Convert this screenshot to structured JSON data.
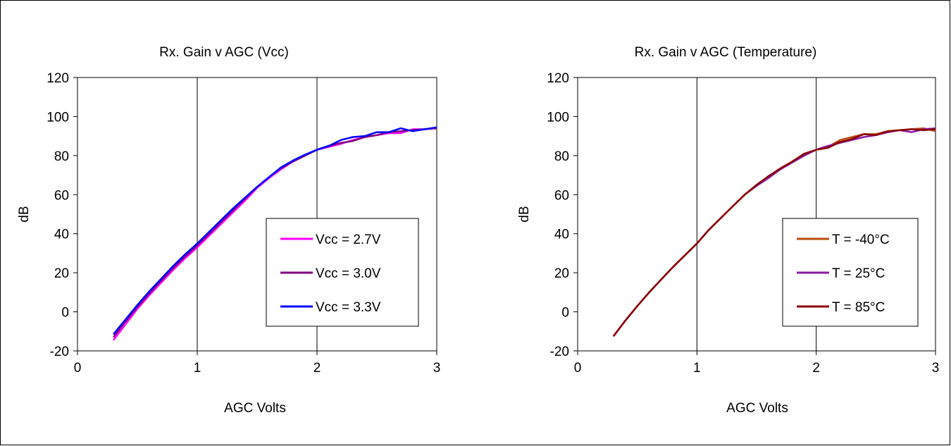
{
  "chart_data": [
    {
      "type": "line",
      "title": "Rx. Gain v AGC (Vcc)",
      "xlabel": "AGC Volts",
      "ylabel": "dB",
      "xlim": [
        0,
        3
      ],
      "ylim": [
        -20,
        120
      ],
      "xticks": [
        "0",
        "1",
        "2",
        "3"
      ],
      "yticks": [
        "-20",
        "0",
        "20",
        "40",
        "60",
        "80",
        "100",
        "120"
      ],
      "grid": "vertical",
      "legend_position": "center-right",
      "series": [
        {
          "name": "Vcc = 2.7V",
          "color": "#ff00ff",
          "x": [
            0.3,
            0.4,
            0.5,
            0.6,
            0.7,
            0.8,
            0.9,
            1.0,
            1.1,
            1.2,
            1.3,
            1.4,
            1.5,
            1.6,
            1.7,
            1.8,
            1.9,
            2.0,
            2.1,
            2.2,
            2.3,
            2.4,
            2.5,
            2.6,
            2.7,
            2.8,
            2.9,
            3.0
          ],
          "y": [
            -14.5,
            -6.5,
            1.5,
            8.5,
            15,
            21.5,
            27.5,
            33,
            39,
            45,
            51,
            57,
            63.5,
            68.5,
            73,
            77,
            80,
            83,
            84.5,
            86,
            88,
            89.5,
            90.5,
            91.5,
            91.5,
            93.5,
            93.5,
            94
          ]
        },
        {
          "name": "Vcc = 3.0V",
          "color": "#800080",
          "x": [
            0.3,
            0.4,
            0.5,
            0.6,
            0.7,
            0.8,
            0.9,
            1.0,
            1.1,
            1.2,
            1.3,
            1.4,
            1.5,
            1.6,
            1.7,
            1.8,
            1.9,
            2.0,
            2.1,
            2.2,
            2.3,
            2.4,
            2.5,
            2.6,
            2.7,
            2.8,
            2.9,
            3.0
          ],
          "y": [
            -13,
            -5,
            2.5,
            9.5,
            16,
            22.5,
            28.5,
            34,
            40,
            46,
            52,
            58,
            64,
            69,
            73.5,
            77,
            80,
            83,
            85,
            86.5,
            87.5,
            89.5,
            90.5,
            92,
            92.5,
            93,
            93.5,
            94
          ]
        },
        {
          "name": "Vcc = 3.3V",
          "color": "#0000ff",
          "x": [
            0.3,
            0.4,
            0.5,
            0.6,
            0.7,
            0.8,
            0.9,
            1.0,
            1.1,
            1.2,
            1.3,
            1.4,
            1.5,
            1.6,
            1.7,
            1.8,
            1.9,
            2.0,
            2.1,
            2.2,
            2.3,
            2.4,
            2.5,
            2.6,
            2.7,
            2.8,
            2.9,
            3.0
          ],
          "y": [
            -11.5,
            -4,
            3.5,
            10.5,
            17,
            23.5,
            29.5,
            35,
            41,
            47,
            53,
            58.5,
            64,
            69,
            74,
            77.5,
            80.5,
            83,
            85,
            88,
            89.5,
            90,
            92,
            92,
            94,
            92.5,
            93.5,
            94.5
          ]
        }
      ]
    },
    {
      "type": "line",
      "title": "Rx. Gain v AGC (Temperature)",
      "xlabel": "AGC Volts",
      "ylabel": "dB",
      "xlim": [
        0,
        3
      ],
      "ylim": [
        -20,
        120
      ],
      "xticks": [
        "0",
        "1",
        "2",
        "3"
      ],
      "yticks": [
        "-20",
        "0",
        "20",
        "40",
        "60",
        "80",
        "100",
        "120"
      ],
      "grid": "vertical",
      "legend_position": "center-right",
      "series": [
        {
          "name": "T = -40°C",
          "color": "#b84c10",
          "x": [
            0.3,
            0.4,
            0.5,
            0.6,
            0.7,
            0.8,
            0.9,
            1.0,
            1.1,
            1.2,
            1.3,
            1.4,
            1.5,
            1.6,
            1.7,
            1.8,
            1.9,
            2.0,
            2.1,
            2.2,
            2.3,
            2.4,
            2.5,
            2.6,
            2.7,
            2.8,
            2.9,
            3.0
          ],
          "y": [
            -12.5,
            -4.5,
            3,
            10,
            16.5,
            23,
            29,
            35,
            42,
            48,
            54,
            60,
            64.5,
            69,
            73,
            77,
            80.5,
            83,
            84.5,
            88,
            89.5,
            91,
            91,
            92.5,
            93,
            93.5,
            94,
            92.5
          ]
        },
        {
          "name": "T = 25°C",
          "color": "#8a1aa0",
          "x": [
            0.3,
            0.4,
            0.5,
            0.6,
            0.7,
            0.8,
            0.9,
            1.0,
            1.1,
            1.2,
            1.3,
            1.4,
            1.5,
            1.6,
            1.7,
            1.8,
            1.9,
            2.0,
            2.1,
            2.2,
            2.3,
            2.4,
            2.5,
            2.6,
            2.7,
            2.8,
            2.9,
            3.0
          ],
          "y": [
            -12.5,
            -4.5,
            3,
            10,
            16.5,
            23,
            29,
            35,
            42,
            48,
            54,
            60,
            64.5,
            68.5,
            73,
            76.5,
            80,
            83,
            85,
            86.5,
            88,
            89.5,
            90.5,
            92,
            93,
            92,
            93.5,
            94
          ]
        },
        {
          "name": "T = 85°C",
          "color": "#8b0000",
          "x": [
            0.3,
            0.4,
            0.5,
            0.6,
            0.7,
            0.8,
            0.9,
            1.0,
            1.1,
            1.2,
            1.3,
            1.4,
            1.5,
            1.6,
            1.7,
            1.8,
            1.9,
            2.0,
            2.1,
            2.2,
            2.3,
            2.4,
            2.5,
            2.6,
            2.7,
            2.8,
            2.9,
            3.0
          ],
          "y": [
            -12.5,
            -4.5,
            3,
            10,
            16.5,
            23,
            29,
            35,
            42,
            48,
            54,
            60,
            65,
            69.5,
            73.5,
            77,
            81,
            83,
            84,
            87,
            88.5,
            91,
            90.5,
            92.5,
            93,
            93.5,
            93,
            93.5
          ]
        }
      ]
    }
  ]
}
